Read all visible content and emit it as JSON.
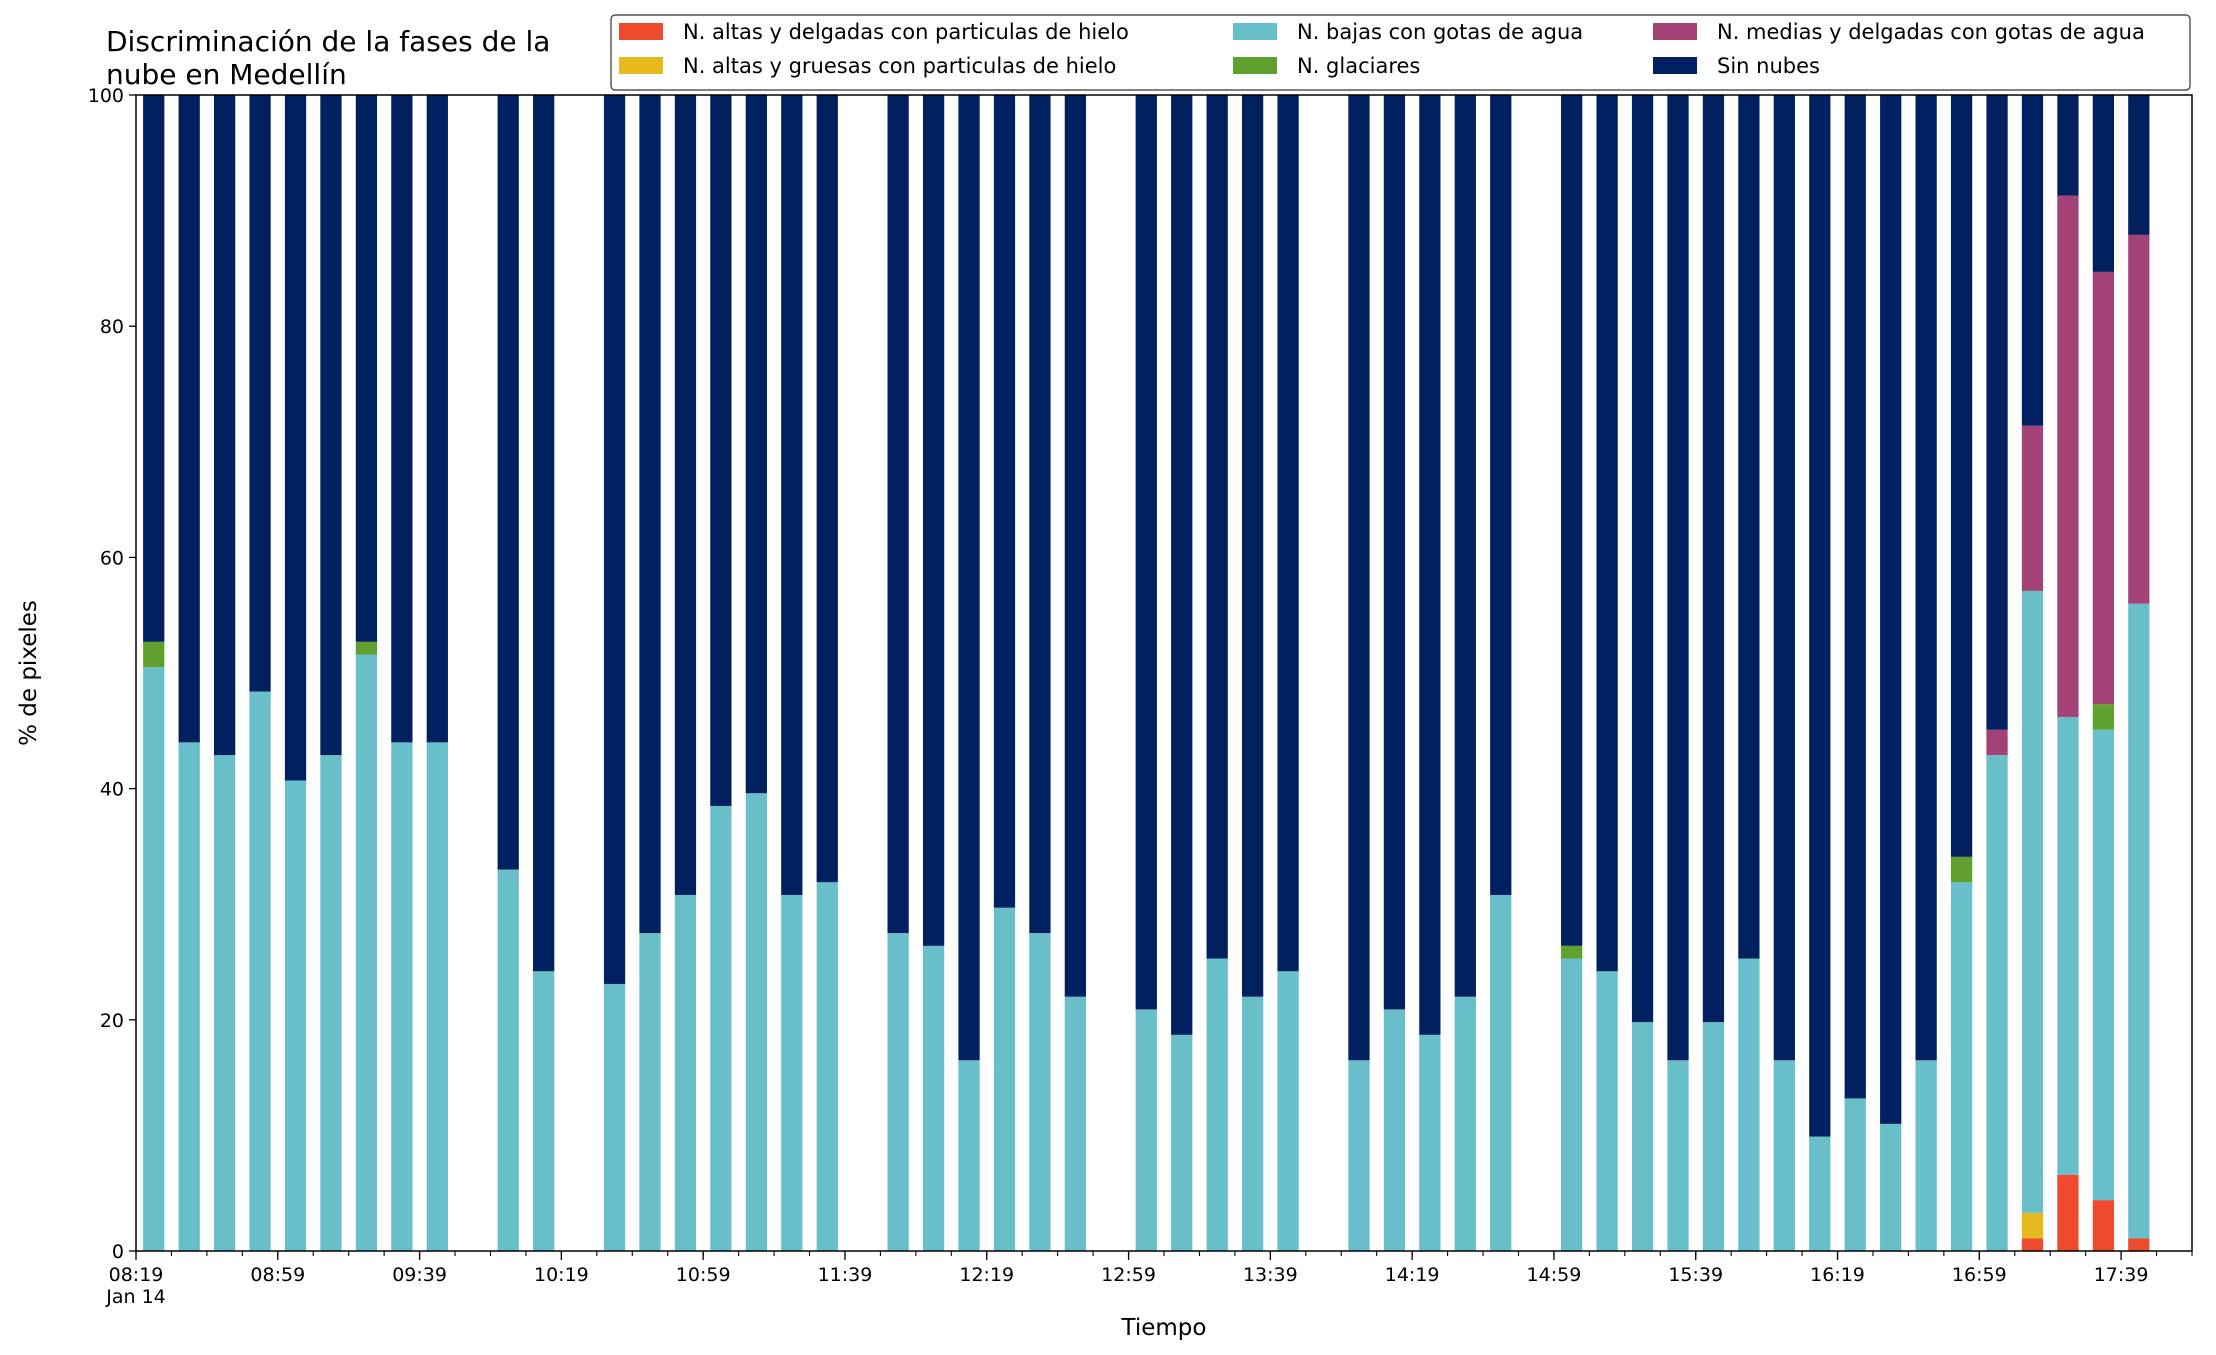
{
  "chart_data": {
    "type": "bar",
    "stacked": true,
    "title_lines": [
      "Discriminación de la fases de la",
      "nube en Medellín"
    ],
    "xlabel": "Tiempo",
    "ylabel": "% de pixeles",
    "ylim": [
      0,
      100
    ],
    "yticks": [
      0,
      20,
      40,
      60,
      80,
      100
    ],
    "x_start": "08:19",
    "x_end": "17:59",
    "x_step_minutes": 10,
    "x_major_ticks": [
      {
        "time": "08:19",
        "label": "08:19",
        "sublabel": "Jan 14"
      },
      {
        "time": "08:59",
        "label": "08:59"
      },
      {
        "time": "09:39",
        "label": "09:39"
      },
      {
        "time": "10:19",
        "label": "10:19"
      },
      {
        "time": "10:59",
        "label": "10:59"
      },
      {
        "time": "11:39",
        "label": "11:39"
      },
      {
        "time": "12:19",
        "label": "12:19"
      },
      {
        "time": "12:59",
        "label": "12:59"
      },
      {
        "time": "13:39",
        "label": "13:39"
      },
      {
        "time": "14:19",
        "label": "14:19"
      },
      {
        "time": "14:59",
        "label": "14:59"
      },
      {
        "time": "15:39",
        "label": "15:39"
      },
      {
        "time": "16:19",
        "label": "16:19"
      },
      {
        "time": "16:59",
        "label": "16:59"
      },
      {
        "time": "17:39",
        "label": "17:39"
      }
    ],
    "legend_position": "top-right",
    "series": [
      {
        "key": "altas_delgadas",
        "name": "N. altas y delgadas con particulas de hielo",
        "color": "#ee4a2d"
      },
      {
        "key": "altas_gruesas",
        "name": "N. altas y gruesas con particulas de hielo",
        "color": "#e6b91e"
      },
      {
        "key": "bajas",
        "name": "N. bajas con gotas de agua",
        "color": "#68bfca"
      },
      {
        "key": "glaciares",
        "name": "N. glaciares",
        "color": "#5fa02f"
      },
      {
        "key": "medias",
        "name": "N. medias y delgadas con gotas de agua",
        "color": "#a34276"
      },
      {
        "key": "sin_nubes",
        "name": "Sin nubes",
        "color": "#00205f"
      }
    ],
    "legend_order": [
      "altas_delgadas",
      "altas_gruesas",
      "bajas",
      "glaciares",
      "medias",
      "sin_nubes"
    ],
    "bars": [
      {
        "time": "08:24",
        "values": [
          0,
          0,
          50.5,
          2.2,
          0,
          47.3
        ]
      },
      {
        "time": "08:34",
        "values": [
          0,
          0,
          44,
          0,
          0,
          56
        ]
      },
      {
        "time": "08:44",
        "values": [
          0,
          0,
          42.9,
          0,
          0,
          57.1
        ]
      },
      {
        "time": "08:54",
        "values": [
          0,
          0,
          48.4,
          0,
          0,
          51.6
        ]
      },
      {
        "time": "09:04",
        "values": [
          0,
          0,
          40.7,
          0,
          0,
          59.3
        ]
      },
      {
        "time": "09:14",
        "values": [
          0,
          0,
          42.9,
          0,
          0,
          57.1
        ]
      },
      {
        "time": "09:24",
        "values": [
          0,
          0,
          51.6,
          1.1,
          0,
          47.3
        ]
      },
      {
        "time": "09:34",
        "values": [
          0,
          0,
          44,
          0,
          0,
          56
        ]
      },
      {
        "time": "09:44",
        "values": [
          0,
          0,
          44,
          0,
          0,
          56
        ]
      },
      {
        "time": "10:04",
        "values": [
          0,
          0,
          33,
          0,
          0,
          67
        ]
      },
      {
        "time": "10:14",
        "values": [
          0,
          0,
          24.2,
          0,
          0,
          75.8
        ]
      },
      {
        "time": "10:34",
        "values": [
          0,
          0,
          23.1,
          0,
          0,
          76.9
        ]
      },
      {
        "time": "10:44",
        "values": [
          0,
          0,
          27.5,
          0,
          0,
          72.5
        ]
      },
      {
        "time": "10:54",
        "values": [
          0,
          0,
          30.8,
          0,
          0,
          69.2
        ]
      },
      {
        "time": "11:04",
        "values": [
          0,
          0,
          38.5,
          0,
          0,
          61.5
        ]
      },
      {
        "time": "11:14",
        "values": [
          0,
          0,
          39.6,
          0,
          0,
          60.4
        ]
      },
      {
        "time": "11:24",
        "values": [
          0,
          0,
          30.8,
          0,
          0,
          69.2
        ]
      },
      {
        "time": "11:34",
        "values": [
          0,
          0,
          31.9,
          0,
          0,
          68.1
        ]
      },
      {
        "time": "11:54",
        "values": [
          0,
          0,
          27.5,
          0,
          0,
          72.5
        ]
      },
      {
        "time": "12:04",
        "values": [
          0,
          0,
          26.4,
          0,
          0,
          73.6
        ]
      },
      {
        "time": "12:14",
        "values": [
          0,
          0,
          16.5,
          0,
          0,
          83.5
        ]
      },
      {
        "time": "12:24",
        "values": [
          0,
          0,
          29.7,
          0,
          0,
          70.3
        ]
      },
      {
        "time": "12:34",
        "values": [
          0,
          0,
          27.5,
          0,
          0,
          72.5
        ]
      },
      {
        "time": "12:44",
        "values": [
          0,
          0,
          22,
          0,
          0,
          78
        ]
      },
      {
        "time": "13:04",
        "values": [
          0,
          0,
          20.9,
          0,
          0,
          79.1
        ]
      },
      {
        "time": "13:14",
        "values": [
          0,
          0,
          18.7,
          0,
          0,
          81.3
        ]
      },
      {
        "time": "13:24",
        "values": [
          0,
          0,
          25.3,
          0,
          0,
          74.7
        ]
      },
      {
        "time": "13:34",
        "values": [
          0,
          0,
          22,
          0,
          0,
          78
        ]
      },
      {
        "time": "13:44",
        "values": [
          0,
          0,
          24.2,
          0,
          0,
          75.8
        ]
      },
      {
        "time": "14:04",
        "values": [
          0,
          0,
          16.5,
          0,
          0,
          83.5
        ]
      },
      {
        "time": "14:14",
        "values": [
          0,
          0,
          20.9,
          0,
          0,
          79.1
        ]
      },
      {
        "time": "14:24",
        "values": [
          0,
          0,
          18.7,
          0,
          0,
          81.3
        ]
      },
      {
        "time": "14:34",
        "values": [
          0,
          0,
          22,
          0,
          0,
          78
        ]
      },
      {
        "time": "14:44",
        "values": [
          0,
          0,
          30.8,
          0,
          0,
          69.2
        ]
      },
      {
        "time": "15:04",
        "values": [
          0,
          0,
          25.3,
          1.1,
          0,
          73.6
        ]
      },
      {
        "time": "15:14",
        "values": [
          0,
          0,
          24.2,
          0,
          0,
          75.8
        ]
      },
      {
        "time": "15:24",
        "values": [
          0,
          0,
          19.8,
          0,
          0,
          80.2
        ]
      },
      {
        "time": "15:34",
        "values": [
          0,
          0,
          16.5,
          0,
          0,
          83.5
        ]
      },
      {
        "time": "15:44",
        "values": [
          0,
          0,
          19.8,
          0,
          0,
          80.2
        ]
      },
      {
        "time": "15:54",
        "values": [
          0,
          0,
          25.3,
          0,
          0,
          74.7
        ]
      },
      {
        "time": "16:04",
        "values": [
          0,
          0,
          16.5,
          0,
          0,
          83.5
        ]
      },
      {
        "time": "16:14",
        "values": [
          0,
          0,
          9.9,
          0,
          0,
          90.1
        ]
      },
      {
        "time": "16:24",
        "values": [
          0,
          0,
          13.2,
          0,
          0,
          86.8
        ]
      },
      {
        "time": "16:34",
        "values": [
          0,
          0,
          11,
          0,
          0,
          89
        ]
      },
      {
        "time": "16:44",
        "values": [
          0,
          0,
          16.5,
          0,
          0,
          83.5
        ]
      },
      {
        "time": "16:54",
        "values": [
          0,
          0,
          31.9,
          2.2,
          0,
          65.9
        ]
      },
      {
        "time": "17:04",
        "values": [
          0,
          0,
          42.9,
          0,
          2.2,
          54.9
        ]
      },
      {
        "time": "17:14",
        "values": [
          1.1,
          2.2,
          53.8,
          0,
          14.3,
          28.6
        ]
      },
      {
        "time": "17:24",
        "values": [
          6.6,
          0,
          39.6,
          0,
          45.1,
          8.7
        ]
      },
      {
        "time": "17:34",
        "values": [
          4.4,
          0,
          40.7,
          2.2,
          37.4,
          15.3
        ]
      },
      {
        "time": "17:44",
        "values": [
          1.1,
          0,
          54.9,
          0,
          31.9,
          12.1
        ]
      }
    ]
  }
}
